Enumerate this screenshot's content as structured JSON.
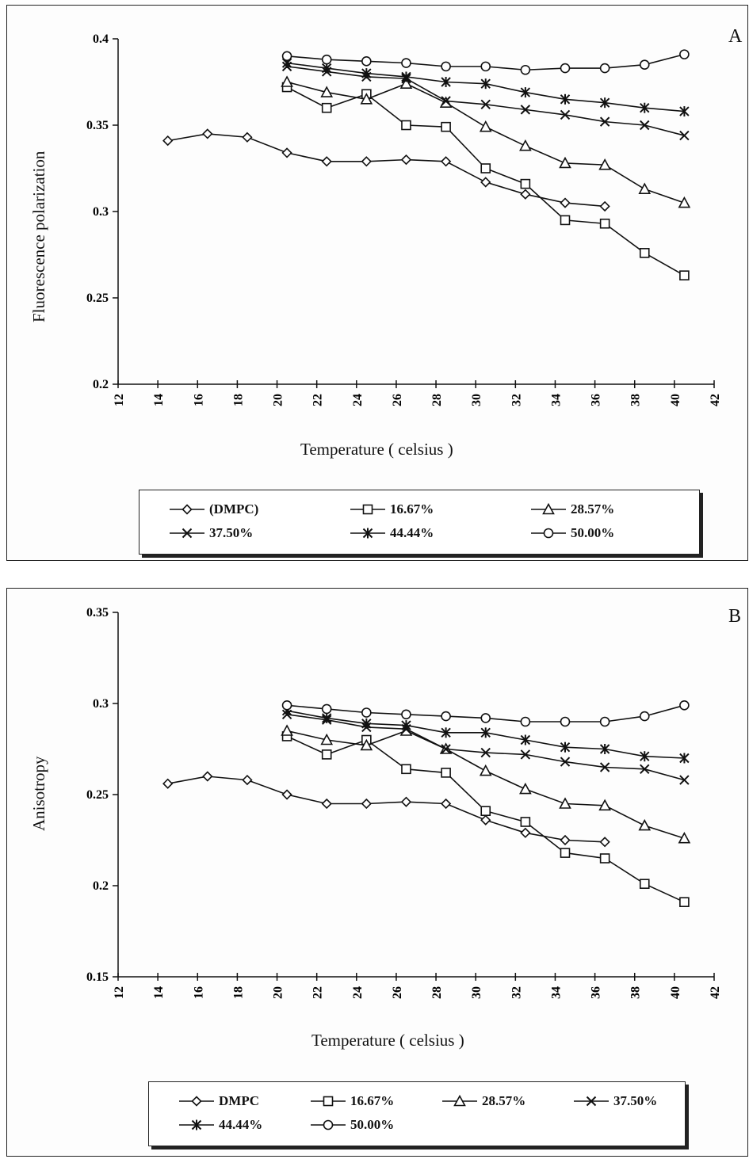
{
  "chart_data": [
    {
      "type": "line",
      "panel_label": "A",
      "xlabel": "Temperature ( celsius )",
      "ylabel": "Fluorescence  polarization",
      "xlim": [
        12,
        42
      ],
      "ylim": [
        0.2,
        0.4
      ],
      "xticks": [
        "12",
        "14",
        "16",
        "18",
        "20",
        "22",
        "24",
        "26",
        "28",
        "30",
        "32",
        "34",
        "36",
        "38",
        "40",
        "42"
      ],
      "yticks": [
        "0.2",
        "0.25",
        "0.3",
        "0.35",
        "0.4"
      ],
      "legend_position": "bottom",
      "series": [
        {
          "name": "(DMPC)",
          "marker": "diamond",
          "x": [
            14.5,
            16.5,
            18.5,
            20.5,
            22.5,
            24.5,
            26.5,
            28.5,
            30.5,
            32.5,
            34.5,
            36.5
          ],
          "y": [
            0.341,
            0.345,
            0.343,
            0.334,
            0.329,
            0.329,
            0.33,
            0.329,
            0.317,
            0.31,
            0.305,
            0.303
          ]
        },
        {
          "name": "16.67%",
          "marker": "square",
          "x": [
            20.5,
            22.5,
            24.5,
            26.5,
            28.5,
            30.5,
            32.5,
            34.5,
            36.5,
            38.5,
            40.5
          ],
          "y": [
            0.372,
            0.36,
            0.368,
            0.35,
            0.349,
            0.325,
            0.316,
            0.295,
            0.293,
            0.276,
            0.263
          ]
        },
        {
          "name": "28.57%",
          "marker": "triangle",
          "x": [
            20.5,
            22.5,
            24.5,
            26.5,
            28.5,
            30.5,
            32.5,
            34.5,
            36.5,
            38.5,
            40.5
          ],
          "y": [
            0.375,
            0.369,
            0.365,
            0.374,
            0.363,
            0.349,
            0.338,
            0.328,
            0.327,
            0.313,
            0.305
          ]
        },
        {
          "name": "37.50%",
          "marker": "x",
          "x": [
            20.5,
            22.5,
            24.5,
            26.5,
            28.5,
            30.5,
            32.5,
            34.5,
            36.5,
            38.5,
            40.5
          ],
          "y": [
            0.384,
            0.381,
            0.378,
            0.377,
            0.364,
            0.362,
            0.359,
            0.356,
            0.352,
            0.35,
            0.344
          ]
        },
        {
          "name": "44.44%",
          "marker": "star",
          "x": [
            20.5,
            22.5,
            24.5,
            26.5,
            28.5,
            30.5,
            32.5,
            34.5,
            36.5,
            38.5,
            40.5
          ],
          "y": [
            0.386,
            0.383,
            0.38,
            0.378,
            0.375,
            0.374,
            0.369,
            0.365,
            0.363,
            0.36,
            0.358
          ]
        },
        {
          "name": "50.00%",
          "marker": "circle",
          "x": [
            20.5,
            22.5,
            24.5,
            26.5,
            28.5,
            30.5,
            32.5,
            34.5,
            36.5,
            38.5,
            40.5
          ],
          "y": [
            0.39,
            0.388,
            0.387,
            0.386,
            0.384,
            0.384,
            0.382,
            0.383,
            0.383,
            0.385,
            0.391
          ]
        }
      ]
    },
    {
      "type": "line",
      "panel_label": "B",
      "xlabel": "Temperature ( celsius )",
      "ylabel": "Anisotropy",
      "xlim": [
        12,
        42
      ],
      "ylim": [
        0.15,
        0.35
      ],
      "xticks": [
        "12",
        "14",
        "16",
        "18",
        "20",
        "22",
        "24",
        "26",
        "28",
        "30",
        "32",
        "34",
        "36",
        "38",
        "40",
        "42"
      ],
      "yticks": [
        "0.15",
        "0.2",
        "0.25",
        "0.3",
        "0.35"
      ],
      "legend_position": "bottom",
      "series": [
        {
          "name": "DMPC",
          "marker": "diamond",
          "x": [
            14.5,
            16.5,
            18.5,
            20.5,
            22.5,
            24.5,
            26.5,
            28.5,
            30.5,
            32.5,
            34.5,
            36.5
          ],
          "y": [
            0.256,
            0.26,
            0.258,
            0.25,
            0.245,
            0.245,
            0.246,
            0.245,
            0.236,
            0.229,
            0.225,
            0.224
          ]
        },
        {
          "name": "16.67%",
          "marker": "square",
          "x": [
            20.5,
            22.5,
            24.5,
            26.5,
            28.5,
            30.5,
            32.5,
            34.5,
            36.5,
            38.5,
            40.5
          ],
          "y": [
            0.282,
            0.272,
            0.28,
            0.264,
            0.262,
            0.241,
            0.235,
            0.218,
            0.215,
            0.201,
            0.191
          ]
        },
        {
          "name": "28.57%",
          "marker": "triangle",
          "x": [
            20.5,
            22.5,
            24.5,
            26.5,
            28.5,
            30.5,
            32.5,
            34.5,
            36.5,
            38.5,
            40.5
          ],
          "y": [
            0.285,
            0.28,
            0.277,
            0.285,
            0.275,
            0.263,
            0.253,
            0.245,
            0.244,
            0.233,
            0.226
          ]
        },
        {
          "name": "37.50%",
          "marker": "x",
          "x": [
            20.5,
            22.5,
            24.5,
            26.5,
            28.5,
            30.5,
            32.5,
            34.5,
            36.5,
            38.5,
            40.5
          ],
          "y": [
            0.294,
            0.291,
            0.287,
            0.286,
            0.275,
            0.273,
            0.272,
            0.268,
            0.265,
            0.264,
            0.258
          ]
        },
        {
          "name": "44.44%",
          "marker": "star",
          "x": [
            20.5,
            22.5,
            24.5,
            26.5,
            28.5,
            30.5,
            32.5,
            34.5,
            36.5,
            38.5,
            40.5
          ],
          "y": [
            0.296,
            0.292,
            0.289,
            0.288,
            0.284,
            0.284,
            0.28,
            0.276,
            0.275,
            0.271,
            0.27
          ]
        },
        {
          "name": "50.00%",
          "marker": "circle",
          "x": [
            20.5,
            22.5,
            24.5,
            26.5,
            28.5,
            30.5,
            32.5,
            34.5,
            36.5,
            38.5,
            40.5
          ],
          "y": [
            0.299,
            0.297,
            0.295,
            0.294,
            0.293,
            0.292,
            0.29,
            0.29,
            0.29,
            0.293,
            0.299
          ]
        }
      ]
    }
  ]
}
